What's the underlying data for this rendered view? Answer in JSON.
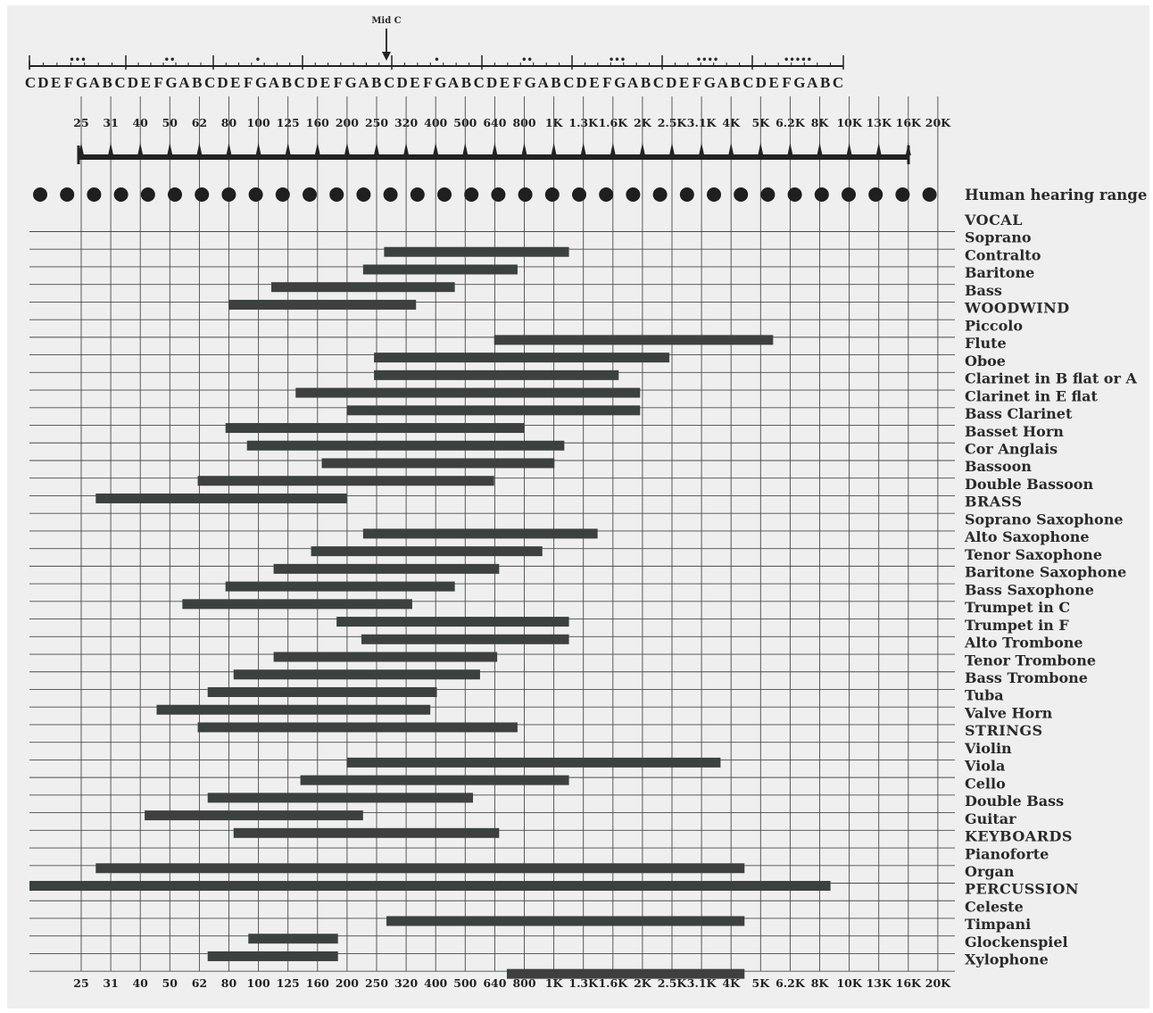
{
  "chart_data": {
    "type": "bar",
    "subtype": "horizontal-range",
    "title": "",
    "xscale": "log",
    "xlabel": "",
    "ylabel": "",
    "grid": true,
    "colors": {
      "bar": "#3c4140",
      "background": "#efefef",
      "grid": "#4a4a4a",
      "text": "#2a2a2a"
    },
    "frequency_ticks": [
      "25",
      "31",
      "40",
      "50",
      "62",
      "80",
      "100",
      "125",
      "160",
      "200",
      "250",
      "320",
      "400",
      "500",
      "640",
      "800",
      "1K",
      "1.3K",
      "1.6K",
      "2K",
      "2.5K",
      "3.1K",
      "4K",
      "5K",
      "6.2K",
      "8K",
      "10K",
      "13K",
      "16K",
      "20K"
    ],
    "bottom_ticks": [
      "25",
      "31",
      "40",
      "50",
      "62",
      "80",
      "100",
      "125",
      "160",
      "200",
      "250",
      "320",
      "400",
      "500",
      "640",
      "800",
      "1K",
      "1.3K",
      "1.6K",
      "2K",
      "2.5K",
      "3.1K",
      "4K",
      "5K",
      "6.2K",
      "8K",
      "10K",
      "13K",
      "16K",
      "20K"
    ],
    "piano_notes": [
      "C",
      "D",
      "E",
      "F",
      "G",
      "A",
      "B",
      "C",
      "D",
      "E",
      "F",
      "G",
      "A",
      "B",
      "C",
      "D",
      "E",
      "F",
      "G",
      "A",
      "B",
      "C",
      "D",
      "E",
      "F",
      "G",
      "A",
      "B",
      "C",
      "D",
      "E",
      "F",
      "G",
      "A",
      "B",
      "C",
      "D",
      "E",
      "F",
      "G",
      "A",
      "B",
      "C",
      "D",
      "E",
      "F",
      "G",
      "A",
      "B",
      "C",
      "D",
      "E",
      "F",
      "G",
      "A",
      "B",
      "C",
      "D",
      "E",
      "F",
      "G",
      "A",
      "B",
      "C"
    ],
    "octave_dots": [
      "•••",
      "••",
      "•",
      "",
      "•",
      "••",
      "•••",
      "••••",
      "•••••"
    ],
    "mid_c_label": "Mid C",
    "hearing_label": "Human hearing range",
    "rows": [
      {
        "label": "VOCAL",
        "category": true
      },
      {
        "label": "Soprano",
        "low": 265,
        "high": 1120
      },
      {
        "label": "Contralto",
        "low": 225,
        "high": 750
      },
      {
        "label": "Baritone",
        "low": 110,
        "high": 460
      },
      {
        "label": "Bass",
        "low": 79,
        "high": 340
      },
      {
        "label": "WOODWIND",
        "category": true
      },
      {
        "label": "Piccolo",
        "low": 625,
        "high": 5500
      },
      {
        "label": "Flute",
        "low": 245,
        "high": 2450
      },
      {
        "label": "Oboe",
        "low": 245,
        "high": 1650
      },
      {
        "label": "Clarinet in B flat or A",
        "low": 133,
        "high": 1950
      },
      {
        "label": "Clarinet in E flat",
        "low": 198,
        "high": 1950
      },
      {
        "label": "Bass Clarinet",
        "low": 77,
        "high": 790
      },
      {
        "label": "Basset Horn",
        "low": 91,
        "high": 1080
      },
      {
        "label": "Cor Anglais",
        "low": 163,
        "high": 1000
      },
      {
        "label": "Bassoon",
        "low": 62,
        "high": 625
      },
      {
        "label": "Double Bassoon",
        "low": 28,
        "high": 198
      },
      {
        "label": "BRASS",
        "category": true
      },
      {
        "label": "Soprano Saxophone",
        "low": 225,
        "high": 1400
      },
      {
        "label": "Alto Saxophone",
        "low": 150,
        "high": 910
      },
      {
        "label": "Tenor Saxophone",
        "low": 112,
        "high": 650
      },
      {
        "label": "Baritone Saxophone",
        "low": 77,
        "high": 460
      },
      {
        "label": "Bass Saxophone",
        "low": 55,
        "high": 330
      },
      {
        "label": "Trumpet in C",
        "low": 183,
        "high": 1120
      },
      {
        "label": "Trumpet in F",
        "low": 222,
        "high": 1120
      },
      {
        "label": "Alto Trombone",
        "low": 112,
        "high": 640
      },
      {
        "label": "Tenor Trombone",
        "low": 82,
        "high": 560
      },
      {
        "label": "Bass Trombone",
        "low": 67,
        "high": 400
      },
      {
        "label": "Tuba",
        "low": 45,
        "high": 380
      },
      {
        "label": "Valve Horn",
        "low": 62,
        "high": 750
      },
      {
        "label": "STRINGS",
        "category": true
      },
      {
        "label": "Violin",
        "low": 198,
        "high": 3650
      },
      {
        "label": "Viola",
        "low": 138,
        "high": 1120
      },
      {
        "label": "Cello",
        "low": 67,
        "high": 530
      },
      {
        "label": "Double Bass",
        "low": 41,
        "high": 225
      },
      {
        "label": "Guitar",
        "low": 82,
        "high": 650
      },
      {
        "label": "KEYBOARDS",
        "category": true
      },
      {
        "label": "Pianoforte",
        "low": 28,
        "high": 4400
      },
      {
        "label": "Organ",
        "low": 16,
        "high": 8600
      },
      {
        "label": "PERCUSSION",
        "category": true
      },
      {
        "label": "Celeste",
        "low": 270,
        "high": 4400
      },
      {
        "label": "Timpani",
        "low": 92,
        "high": 185
      },
      {
        "label": "Glockenspiel",
        "low": 67,
        "high": 185
      },
      {
        "label": "Xylophone",
        "low": 690,
        "high": 4400
      }
    ]
  }
}
